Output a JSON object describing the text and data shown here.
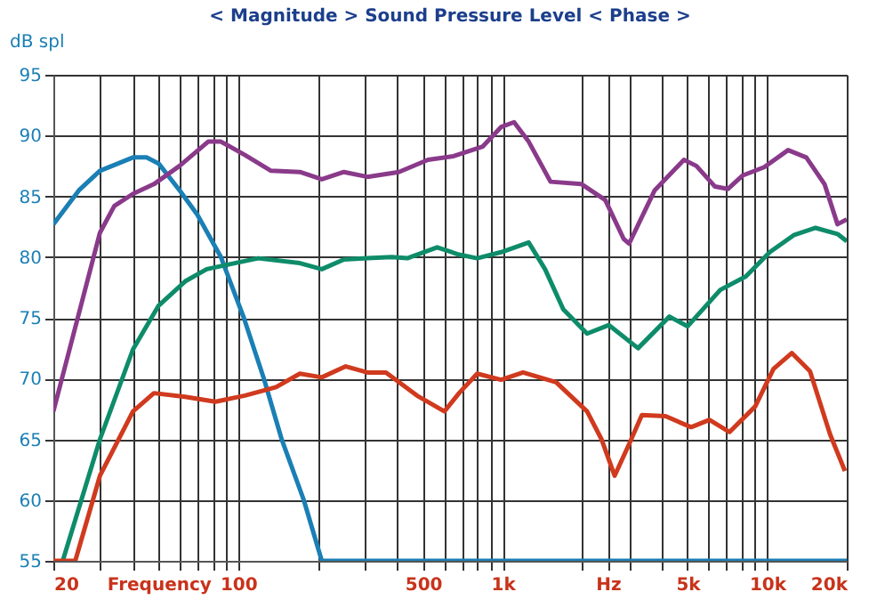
{
  "chart_data": {
    "type": "line",
    "title": "< Magnitude >      Sound Pressure Level      < Phase >",
    "ylabel": "dB spl",
    "log": "x",
    "xlim": [
      20,
      20000
    ],
    "ylim": [
      55,
      95
    ],
    "xticks": [
      20,
      {
        "value": 30,
        "label": null
      },
      {
        "value": 40,
        "label": null
      },
      {
        "value": 50,
        "label": "Frequency"
      },
      {
        "value": 60,
        "label": null
      },
      {
        "value": 70,
        "label": null
      },
      {
        "value": 80,
        "label": null
      },
      {
        "value": 90,
        "label": null
      },
      100,
      {
        "value": 200,
        "label": null
      },
      {
        "value": 300,
        "label": null
      },
      {
        "value": 400,
        "label": null
      },
      500,
      {
        "value": 600,
        "label": null
      },
      {
        "value": 700,
        "label": null
      },
      {
        "value": 800,
        "label": null
      },
      {
        "value": 900,
        "label": null
      },
      {
        "value": 1000,
        "label": "1k"
      },
      {
        "value": 2000,
        "label": null
      },
      {
        "value": 2500,
        "label": "Hz"
      },
      {
        "value": 3000,
        "label": null
      },
      {
        "value": 4000,
        "label": null
      },
      {
        "value": 5000,
        "label": "5k"
      },
      {
        "value": 6000,
        "label": null
      },
      {
        "value": 7000,
        "label": null
      },
      {
        "value": 8000,
        "label": null
      },
      {
        "value": 9000,
        "label": null
      },
      {
        "value": 10000,
        "label": "10k"
      },
      {
        "value": 20000,
        "label": "20k"
      }
    ],
    "yticks": [
      55,
      60,
      65,
      70,
      75,
      80,
      85,
      90,
      95
    ],
    "grid": true,
    "marker": "none",
    "line_style": "solid",
    "series": [
      {
        "color": "#1a7fb5",
        "x": [
          20,
          25,
          30,
          40,
          45,
          50,
          60,
          70,
          86,
          105,
          125,
          146,
          177,
          207,
          20000
        ],
        "values": [
          82.7,
          85.5,
          87.1,
          88.2,
          88.2,
          87.7,
          85.5,
          83.5,
          80,
          75,
          70,
          65,
          60,
          55,
          55
        ]
      },
      {
        "color": "#8a3a8a",
        "x": [
          20,
          30,
          34,
          40,
          48,
          60,
          77,
          86,
          106,
          133,
          171,
          207,
          251,
          308,
          405,
          522,
          652,
          841,
          986,
          1104,
          1254,
          1517,
          1987,
          2442,
          2866,
          3006,
          3758,
          4846,
          5400,
          6350,
          7100,
          8060,
          9750,
          12000,
          14060,
          16480,
          18450,
          20000
        ],
        "values": [
          67.3,
          82,
          84.2,
          85.2,
          86,
          87.5,
          89.5,
          89.5,
          88.4,
          87.1,
          87.0,
          86.4,
          87.0,
          86.6,
          87.0,
          88.0,
          88.3,
          89.1,
          90.7,
          91.1,
          89.5,
          86.2,
          86.0,
          84.7,
          81.5,
          81.1,
          85.5,
          88.0,
          87.5,
          85.8,
          85.6,
          86.7,
          87.4,
          88.8,
          88.2,
          86.0,
          82.7,
          83.1
        ]
      },
      {
        "color": "#0e8c6a",
        "x": [
          21.7,
          30,
          40,
          50,
          63,
          76,
          97,
          119,
          171,
          207,
          251,
          308,
          380,
          436,
          565,
          684,
          801,
          986,
          1254,
          1446,
          1695,
          2085,
          2522,
          3250,
          4270,
          5000,
          6650,
          8310,
          10230,
          12600,
          15240,
          18450,
          20000
        ],
        "values": [
          55,
          65.0,
          72.4,
          76.0,
          78.0,
          79.0,
          79.5,
          79.9,
          79.5,
          79.0,
          79.8,
          79.9,
          80.0,
          79.9,
          80.8,
          80.2,
          79.9,
          80.4,
          81.2,
          79.0,
          75.7,
          73.7,
          74.4,
          72.5,
          75.1,
          74.3,
          77.3,
          78.4,
          80.4,
          81.8,
          82.4,
          81.9,
          81.3
        ]
      },
      {
        "color": "#d03a1e",
        "x": [
          20,
          24.2,
          30,
          40,
          48,
          63,
          82,
          106,
          139,
          171,
          207,
          255,
          308,
          362,
          474,
          602,
          684,
          801,
          986,
          1194,
          1592,
          2085,
          2365,
          2650,
          3006,
          3360,
          4130,
          5160,
          6050,
          7210,
          9010,
          10570,
          12390,
          14520,
          17300,
          19680
        ],
        "values": [
          55,
          55,
          62,
          67.3,
          68.8,
          68.5,
          68.1,
          68.6,
          69.3,
          70.4,
          70.1,
          71.0,
          70.5,
          70.5,
          68.6,
          67.3,
          68.8,
          70.4,
          69.9,
          70.5,
          69.7,
          67.3,
          65.0,
          62.0,
          64.6,
          67.0,
          66.9,
          66.0,
          66.6,
          65.6,
          67.7,
          70.8,
          72.1,
          70.6,
          65.4,
          62.4
        ]
      }
    ]
  }
}
